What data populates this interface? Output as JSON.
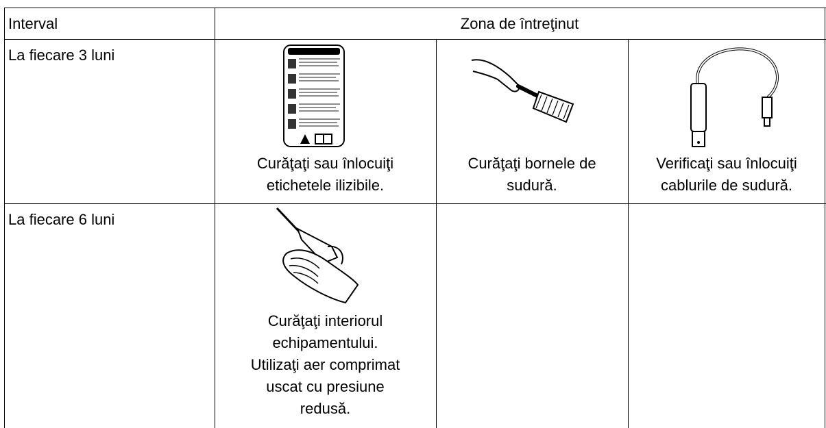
{
  "table": {
    "header": {
      "interval": "Interval",
      "zone": "Zona de întreţinut"
    },
    "rows": [
      {
        "interval": "La fiecare 3 luni",
        "cells": [
          {
            "lines": [
              "Curăţaţi sau înlocuiţi",
              "etichetele ilizibile."
            ]
          },
          {
            "lines": [
              "Curăţaţi bornele de",
              "sudură."
            ]
          },
          {
            "lines": [
              "Verificaţi sau înlocuiţi",
              "cablurile de sudură."
            ]
          }
        ]
      },
      {
        "interval": "La fiecare 6 luni",
        "cells": [
          {
            "lines": [
              "Curăţaţi interiorul",
              "echipamentului.",
              "Utilizaţi aer comprimat",
              "uscat cu presiune",
              "redusă."
            ]
          }
        ]
      }
    ]
  }
}
